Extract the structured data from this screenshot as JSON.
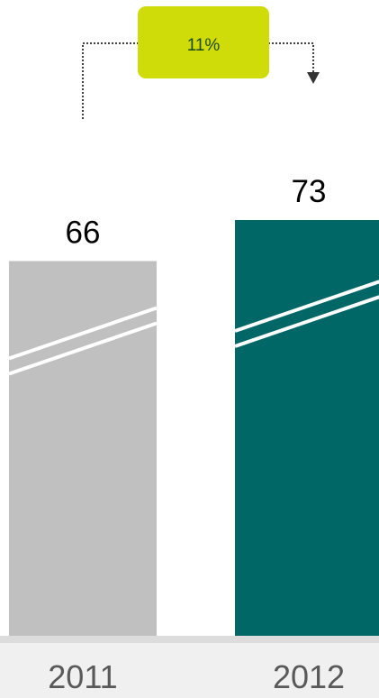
{
  "chart_data": {
    "type": "bar",
    "categories": [
      "2011",
      "2012"
    ],
    "values": [
      66,
      73
    ],
    "data_labels": [
      "66",
      "73"
    ],
    "title": "",
    "xlabel": "",
    "ylabel": "",
    "ylim": [
      0,
      73
    ],
    "grid": false,
    "axis_break": true,
    "bar_colors": [
      "#c0c0c0",
      "#006666"
    ],
    "annotation": {
      "type": "change-arrow",
      "from": "2011",
      "to": "2012",
      "label": "11%",
      "box_color": "#d0dc0a",
      "text_color": "#1a4a1a"
    }
  }
}
